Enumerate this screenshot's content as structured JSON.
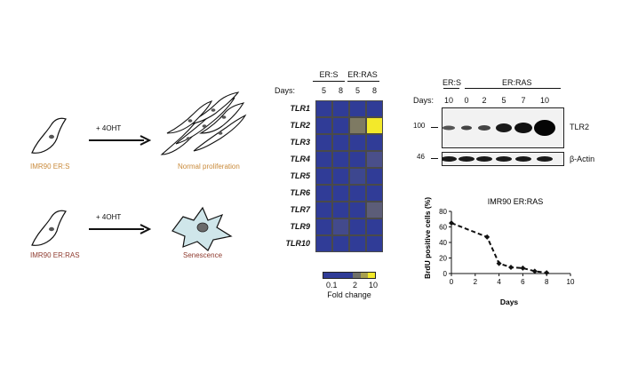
{
  "left_panel": {
    "treatment_top": "+ 4OHT",
    "treatment_bottom": "+ 4OHT",
    "cell_top": "IMR90 ER:S",
    "cell_bottom": "IMR90 ER:RAS",
    "outcome_top": "Normal proliferation",
    "outcome_bottom": "Senescence"
  },
  "heatmap": {
    "group1": "ER:S",
    "group2": "ER:RAS",
    "days_label": "Days:",
    "day_cols": [
      "5",
      "8",
      "5",
      "8"
    ],
    "genes": [
      "TLR1",
      "TLR2",
      "TLR3",
      "TLR4",
      "TLR5",
      "TLR6",
      "TLR7",
      "TLR9",
      "TLR10"
    ],
    "cells": [
      [
        "#303c97",
        "#303c97",
        "#303c97",
        "#303c97"
      ],
      [
        "#303c97",
        "#303c97",
        "#7e7a63",
        "#f3e92a"
      ],
      [
        "#303c97",
        "#303c97",
        "#303c97",
        "#303c97"
      ],
      [
        "#303c97",
        "#303c97",
        "#303c97",
        "#4a4f8a"
      ],
      [
        "#303c97",
        "#303c97",
        "#3d478f",
        "#303c97"
      ],
      [
        "#303c97",
        "#303c97",
        "#303c97",
        "#303c97"
      ],
      [
        "#303c97",
        "#303c97",
        "#303c97",
        "#5c5d78"
      ],
      [
        "#303c97",
        "#434a8c",
        "#303c97",
        "#303c97"
      ],
      [
        "#303c97",
        "#303c97",
        "#303c97",
        "#303c97"
      ]
    ],
    "scale_ticks": [
      "0.1",
      "2",
      "10"
    ],
    "scale_title": "Fold change",
    "scale_colors": [
      "#303c97",
      "#303c97",
      "#303c97",
      "#303c97",
      "#707068",
      "#a8a050",
      "#f3e92a"
    ]
  },
  "blot": {
    "group1": "ER:S",
    "group2": "ER:RAS",
    "days_label": "Days:",
    "days": [
      "10",
      "0",
      "2",
      "5",
      "7",
      "10"
    ],
    "mw_top": "100",
    "mw_bottom": "46",
    "band_top": "TLR2",
    "band_bottom": "β-Actin"
  },
  "chart_data": {
    "type": "line",
    "title": "IMR90 ER:RAS",
    "xlabel": "Days",
    "ylabel": "BrdU positive cells (%)",
    "xlim": [
      0,
      10
    ],
    "ylim": [
      0,
      80
    ],
    "xticks": [
      "0",
      "2",
      "4",
      "6",
      "8",
      "10"
    ],
    "yticks": [
      "0",
      "20",
      "40",
      "60",
      "80"
    ],
    "x": [
      0,
      3,
      4,
      5,
      6,
      7,
      8
    ],
    "y": [
      65,
      47,
      13,
      8,
      7,
      3,
      1
    ]
  }
}
